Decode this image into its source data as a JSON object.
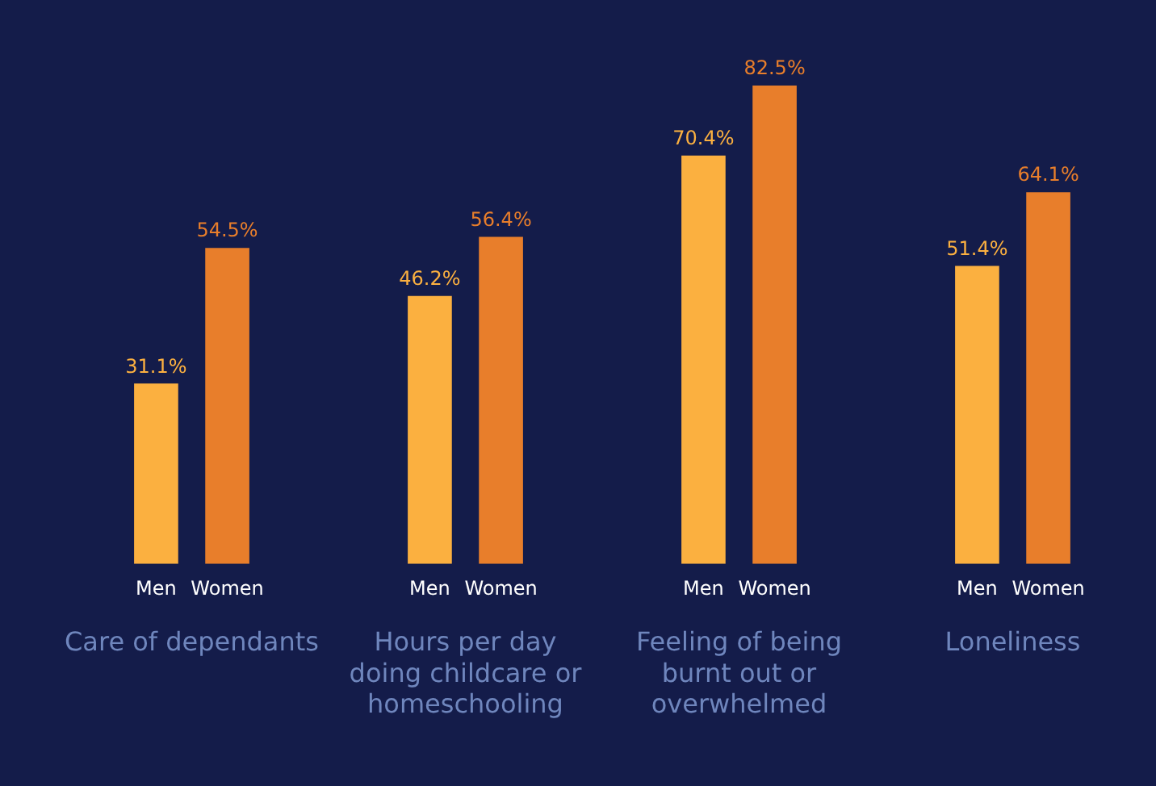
{
  "chart_data": {
    "type": "bar",
    "categories": [
      "Care of dependants",
      "Hours per day doing childcare or homeschooling",
      "Feeling of being burnt out or overwhelmed",
      "Loneliness"
    ],
    "series": [
      {
        "name": "Men",
        "color": "#fbb040",
        "values": [
          31.1,
          46.2,
          70.4,
          51.4
        ],
        "value_labels": [
          "31.1%",
          "46.2%",
          "70.4%",
          "51.4%"
        ]
      },
      {
        "name": "Women",
        "color": "#e87e2b",
        "values": [
          54.5,
          56.4,
          82.5,
          64.1
        ],
        "value_labels": [
          "54.5%",
          "56.4%",
          "82.5%",
          "64.1%"
        ]
      }
    ],
    "legend": false,
    "grid": false,
    "tick_labels": "x"
  }
}
